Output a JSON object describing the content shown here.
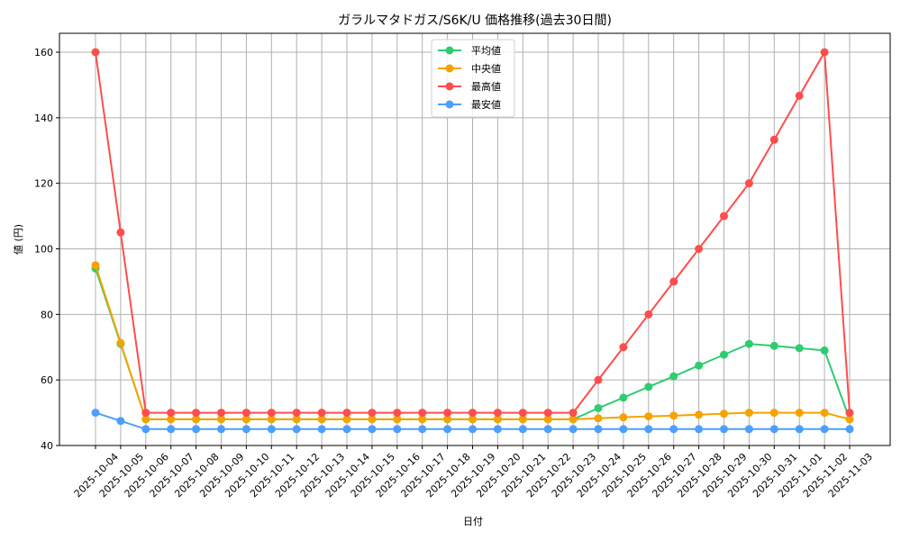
{
  "chart_data": {
    "type": "line",
    "title": "ガラルマタドガス/S6K/U 価格推移(過去30日間)",
    "xlabel": "日付",
    "ylabel": "値 (円)",
    "ylim": [
      39,
      166
    ],
    "yticks": [
      40,
      60,
      80,
      100,
      120,
      140,
      160
    ],
    "grid": true,
    "legend_position": "upper center",
    "categories": [
      "2025-10-04",
      "2025-10-05",
      "2025-10-06",
      "2025-10-07",
      "2025-10-08",
      "2025-10-09",
      "2025-10-10",
      "2025-10-11",
      "2025-10-12",
      "2025-10-13",
      "2025-10-14",
      "2025-10-15",
      "2025-10-16",
      "2025-10-17",
      "2025-10-18",
      "2025-10-19",
      "2025-10-20",
      "2025-10-21",
      "2025-10-22",
      "2025-10-23",
      "2025-10-24",
      "2025-10-25",
      "2025-10-26",
      "2025-10-27",
      "2025-10-28",
      "2025-10-29",
      "2025-10-30",
      "2025-10-31",
      "2025-11-01",
      "2025-11-02",
      "2025-11-03"
    ],
    "series": [
      {
        "name": "平均値",
        "color": "#2ecc71",
        "values": [
          94,
          71,
          48,
          48,
          48,
          48,
          48,
          48,
          48,
          48,
          48,
          48,
          48,
          48,
          48,
          48,
          48,
          48,
          48,
          48,
          51.4,
          54.6,
          57.9,
          61.1,
          64.4,
          67.7,
          71.0,
          70.4,
          69.7,
          69.0,
          48
        ]
      },
      {
        "name": "中央値",
        "color": "#f5a300",
        "values": [
          95,
          71.3,
          48,
          48,
          48,
          48,
          48,
          48,
          48,
          48,
          48,
          48,
          48,
          48,
          48,
          48,
          48,
          48,
          48,
          48,
          48.3,
          48.6,
          48.9,
          49.1,
          49.4,
          49.7,
          50,
          50,
          50,
          50,
          48
        ]
      },
      {
        "name": "最高値",
        "color": "#ff4d4d",
        "values": [
          160,
          105,
          50,
          50,
          50,
          50,
          50,
          50,
          50,
          50,
          50,
          50,
          50,
          50,
          50,
          50,
          50,
          50,
          50,
          50,
          60,
          70,
          80,
          90,
          100,
          110,
          120,
          133.3,
          146.7,
          160,
          50
        ]
      },
      {
        "name": "最安値",
        "color": "#4d9fff",
        "values": [
          50,
          47.5,
          45,
          45,
          45,
          45,
          45,
          45,
          45,
          45,
          45,
          45,
          45,
          45,
          45,
          45,
          45,
          45,
          45,
          45,
          45,
          45,
          45,
          45,
          45,
          45,
          45,
          45,
          45,
          45,
          45
        ]
      }
    ]
  }
}
